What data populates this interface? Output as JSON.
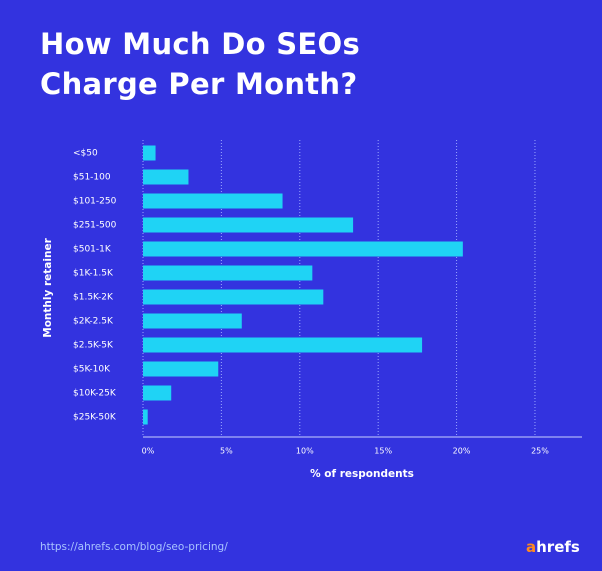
{
  "chart_data": {
    "type": "bar",
    "orientation": "horizontal",
    "title": "How Much Do SEOs Charge Per Month?",
    "source": "https://ahrefs.com/blog/seo-pricing/",
    "brand": "ahrefs",
    "y_label": "Monthly retainer",
    "x_label": "% of respondents",
    "categories": [
      "<$50",
      "$51-100",
      "$101-250",
      "$251-500",
      "$501-1K",
      "$1K-1.5K",
      "$1.5K-2K",
      "$2K-2.5K",
      "$2.5K-5K",
      "$5K-10K",
      "$10K-25K",
      "$25K-50K"
    ],
    "values": [
      0.8,
      2.9,
      8.9,
      13.4,
      20.4,
      10.8,
      11.5,
      6.3,
      17.8,
      4.8,
      1.8,
      0.3
    ],
    "color": "#1fd3f5",
    "xlim": [
      0,
      28
    ],
    "xticks": [
      {
        "value": 0,
        "label": "0%"
      },
      {
        "value": 5,
        "label": "5%"
      },
      {
        "value": 10,
        "label": "10%"
      },
      {
        "value": 15,
        "label": "15%"
      },
      {
        "value": 20,
        "label": "20%"
      },
      {
        "value": 25,
        "label": "25%"
      }
    ],
    "grid": true
  }
}
